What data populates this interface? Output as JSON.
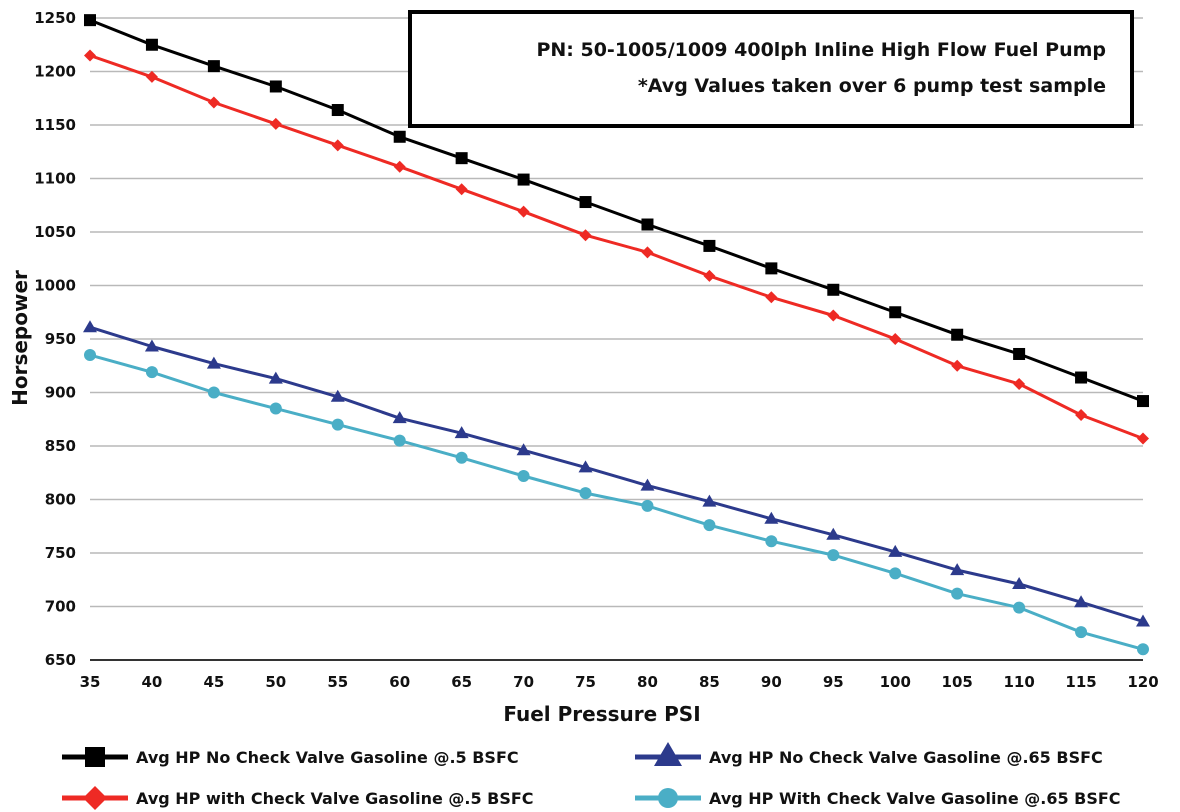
{
  "chart_data": {
    "type": "line",
    "title": "",
    "xlabel": "Fuel Pressure PSI",
    "ylabel": "Horsepower",
    "xlim": [
      35,
      120
    ],
    "ylim": [
      650,
      1250
    ],
    "x_ticks": [
      35,
      40,
      45,
      50,
      55,
      60,
      65,
      70,
      75,
      80,
      85,
      90,
      95,
      100,
      105,
      110,
      115,
      120
    ],
    "y_ticks": [
      650,
      700,
      750,
      800,
      850,
      900,
      950,
      1000,
      1050,
      1100,
      1150,
      1200,
      1250
    ],
    "grid": "horizontal",
    "legend_position": "bottom",
    "annotation": {
      "line1": "PN: 50-1005/1009 400lph Inline High Flow Fuel Pump",
      "line2": "*Avg Values taken over 6 pump test sample"
    },
    "x": [
      35,
      40,
      45,
      50,
      55,
      60,
      65,
      70,
      75,
      80,
      85,
      90,
      95,
      100,
      105,
      110,
      115,
      120
    ],
    "series": [
      {
        "name": "Avg HP No Check Valve Gasoline @.5 BSFC",
        "color": "#000000",
        "marker": "square",
        "values": [
          1248,
          1225,
          1205,
          1186,
          1164,
          1139,
          1119,
          1099,
          1078,
          1057,
          1037,
          1016,
          996,
          975,
          954,
          936,
          914,
          892
        ]
      },
      {
        "name": "Avg HP with Check Valve Gasoline @.5 BSFC",
        "color": "#ee2a24",
        "marker": "diamond",
        "values": [
          1215,
          1195,
          1171,
          1151,
          1131,
          1111,
          1090,
          1069,
          1047,
          1031,
          1009,
          989,
          972,
          950,
          925,
          908,
          879,
          857
        ]
      },
      {
        "name": "Avg HP No Check Valve Gasoline @.65 BSFC",
        "color": "#2c3a8c",
        "marker": "triangle",
        "values": [
          961,
          943,
          927,
          913,
          896,
          876,
          862,
          846,
          830,
          813,
          798,
          782,
          767,
          751,
          734,
          721,
          704,
          686
        ]
      },
      {
        "name": "Avg HP With Check Valve Gasoline @.65 BSFC",
        "color": "#4aaec6",
        "marker": "circle",
        "values": [
          935,
          919,
          900,
          885,
          870,
          855,
          839,
          822,
          806,
          794,
          776,
          761,
          748,
          731,
          712,
          699,
          676,
          660
        ]
      }
    ]
  }
}
